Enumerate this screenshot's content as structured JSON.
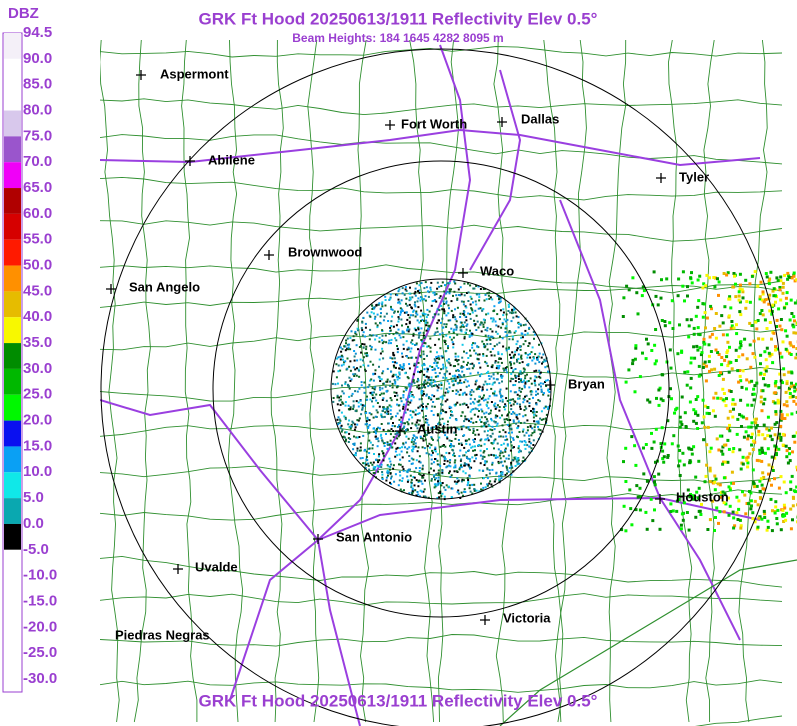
{
  "header": {
    "title": "GRK Ft Hood 20250613/1911 Reflectivity Elev 0.5°",
    "subtitle": "Beam Heights: 184 1645 4282 8095 m"
  },
  "footer": {
    "title": "GRK Ft Hood 20250613/1911 Reflectivity Elev 0.5°"
  },
  "legend": {
    "unit": "DBZ",
    "labels": [
      "94.5",
      "90.0",
      "85.0",
      "80.0",
      "75.0",
      "70.0",
      "65.0",
      "60.0",
      "55.0",
      "50.0",
      "45.0",
      "40.0",
      "35.0",
      "30.0",
      "25.0",
      "20.0",
      "15.0",
      "10.0",
      "5.0",
      "0.0",
      "-5.0",
      "-10.0",
      "-15.0",
      "-20.0",
      "-25.0",
      "-30.0"
    ],
    "colors": [
      "#f4f0f8",
      "#ffffff",
      "#ffffff",
      "#d8c8ec",
      "#9a55cc",
      "#f000f8",
      "#b00000",
      "#d60000",
      "#ff1a00",
      "#ff9000",
      "#e6bc00",
      "#f8f800",
      "#008c00",
      "#00b800",
      "#00f800",
      "#0a10f0",
      "#0aa0f4",
      "#10e8e8",
      "#0aa8b0",
      "#000000",
      "#ffffff",
      "#ffffff",
      "#ffffff",
      "#ffffff",
      "#ffffff"
    ]
  },
  "cities": [
    {
      "name": "Aspermont"
    },
    {
      "name": "Abilene"
    },
    {
      "name": "Fort Worth"
    },
    {
      "name": "Dallas"
    },
    {
      "name": "Tyler"
    },
    {
      "name": "Brownwood"
    },
    {
      "name": "Waco"
    },
    {
      "name": "San Angelo"
    },
    {
      "name": "Bryan"
    },
    {
      "name": "Austin"
    },
    {
      "name": "Houston"
    },
    {
      "name": "San Antonio"
    },
    {
      "name": "Uvalde"
    },
    {
      "name": "Victoria"
    },
    {
      "name": "Piedras Negras"
    }
  ]
}
